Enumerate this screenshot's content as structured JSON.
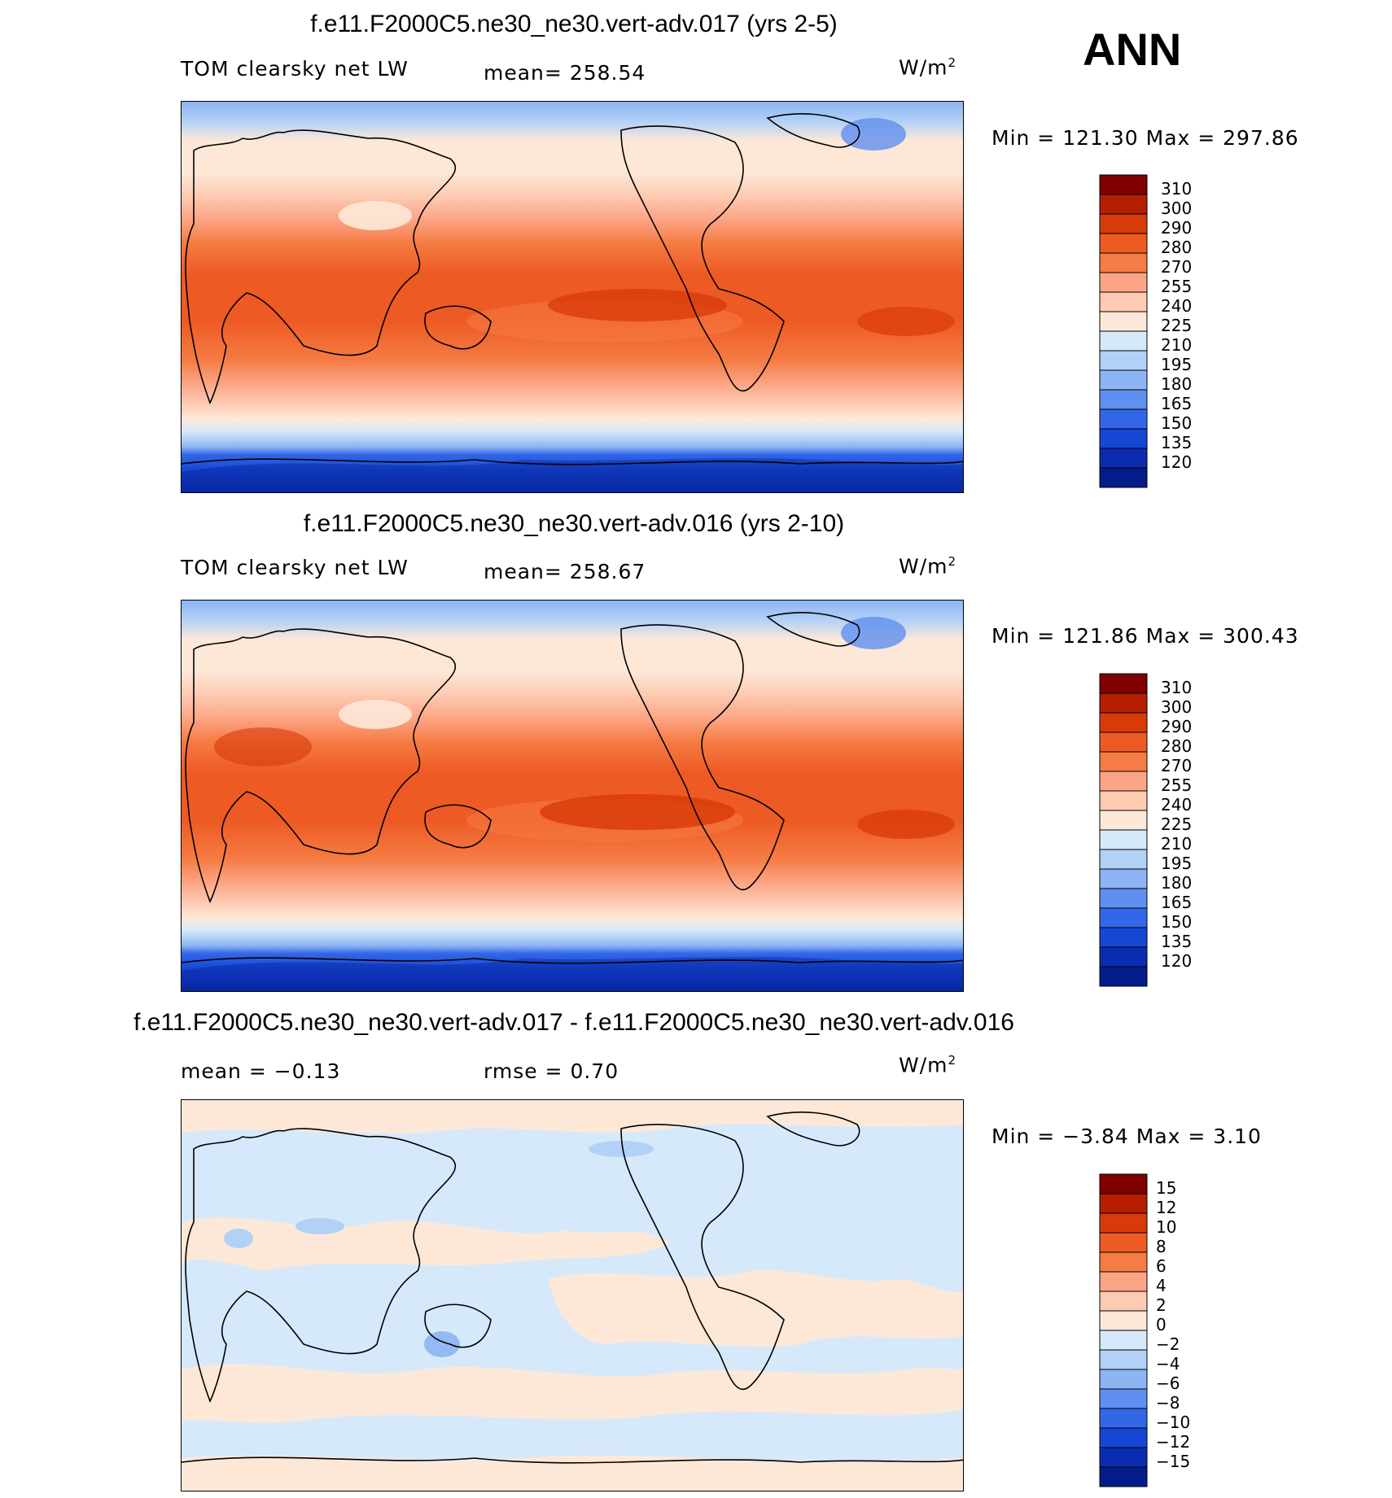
{
  "season_label": "ANN",
  "panels": [
    {
      "title": "f.e11.F2000C5.ne30_ne30.vert-adv.017 (yrs 2-5)",
      "left_label": "TOM clearsky net LW",
      "center_label": "mean= 258.54",
      "units": "W/m",
      "units_sup": "2",
      "minmax": "Min = 121.30 Max = 297.86",
      "colorbar_levels": [
        "310",
        "300",
        "290",
        "280",
        "270",
        "255",
        "240",
        "225",
        "210",
        "195",
        "180",
        "165",
        "150",
        "135",
        "120"
      ]
    },
    {
      "title": "f.e11.F2000C5.ne30_ne30.vert-adv.016 (yrs 2-10)",
      "left_label": "TOM clearsky net LW",
      "center_label": "mean= 258.67",
      "units": "W/m",
      "units_sup": "2",
      "minmax": "Min = 121.86 Max = 300.43",
      "colorbar_levels": [
        "310",
        "300",
        "290",
        "280",
        "270",
        "255",
        "240",
        "225",
        "210",
        "195",
        "180",
        "165",
        "150",
        "135",
        "120"
      ]
    },
    {
      "title": "f.e11.F2000C5.ne30_ne30.vert-adv.017 - f.e11.F2000C5.ne30_ne30.vert-adv.016",
      "left_label": "mean =   −0.13",
      "center_label": "rmse =     0.70",
      "units": "W/m",
      "units_sup": "2",
      "minmax": "Min =   −3.84 Max =     3.10",
      "colorbar_levels": [
        "15",
        "12",
        "10",
        "8",
        "6",
        "4",
        "2",
        "0",
        "−2",
        "−4",
        "−6",
        "−8",
        "−10",
        "−12",
        "−15"
      ]
    }
  ],
  "colors": {
    "palette": [
      "#800000",
      "#b51e00",
      "#d83a0a",
      "#ee5a24",
      "#f57c44",
      "#fca586",
      "#fdcbb2",
      "#fde8d8",
      "#d6e9fb",
      "#b2d1f7",
      "#8db4f3",
      "#5f8ff0",
      "#3367e8",
      "#1546d4",
      "#0a2db0",
      "#041b8a"
    ]
  },
  "chart_data": [
    {
      "type": "heatmap",
      "title": "f.e11.F2000C5.ne30_ne30.vert-adv.017 (yrs 2-5)",
      "variable": "TOM clearsky net LW",
      "units": "W/m2",
      "mean": 258.54,
      "min": 121.3,
      "max": 297.86,
      "levels": [
        120,
        135,
        150,
        165,
        180,
        195,
        210,
        225,
        240,
        255,
        270,
        280,
        290,
        300,
        310
      ]
    },
    {
      "type": "heatmap",
      "title": "f.e11.F2000C5.ne30_ne30.vert-adv.016 (yrs 2-10)",
      "variable": "TOM clearsky net LW",
      "units": "W/m2",
      "mean": 258.67,
      "min": 121.86,
      "max": 300.43,
      "levels": [
        120,
        135,
        150,
        165,
        180,
        195,
        210,
        225,
        240,
        255,
        270,
        280,
        290,
        300,
        310
      ]
    },
    {
      "type": "heatmap",
      "title": "f.e11.F2000C5.ne30_ne30.vert-adv.017 - f.e11.F2000C5.ne30_ne30.vert-adv.016",
      "units": "W/m2",
      "mean": -0.13,
      "rmse": 0.7,
      "min": -3.84,
      "max": 3.1,
      "levels": [
        -15,
        -12,
        -10,
        -8,
        -6,
        -4,
        -2,
        0,
        2,
        4,
        6,
        8,
        10,
        12,
        15
      ]
    }
  ]
}
